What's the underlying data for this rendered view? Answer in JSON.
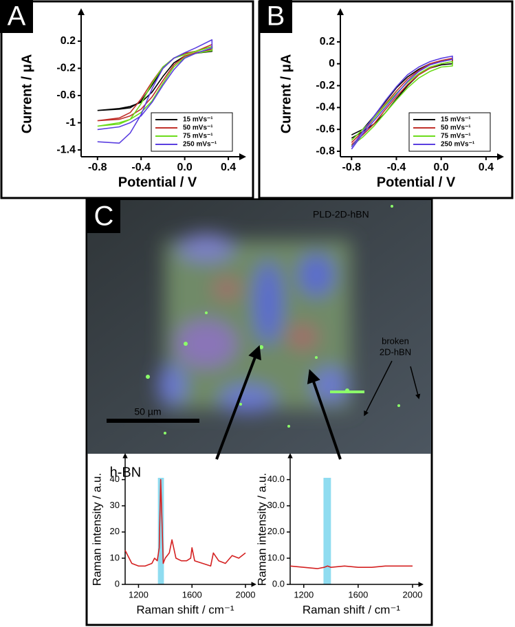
{
  "chart_data": [
    {
      "type": "line",
      "panel": "A",
      "xlabel": "Potential / V",
      "ylabel": "Current / μA",
      "xlim": [
        -0.95,
        0.45
      ],
      "ylim": [
        -1.5,
        0.35
      ],
      "xticks": [
        -0.8,
        -0.4,
        {
          "value": 0,
          "label": "0.0"
        },
        0.4
      ],
      "yticks": [
        0.2,
        -0.2,
        -0.6,
        -1,
        -1.4
      ],
      "legend": "lower right",
      "series": [
        {
          "name": "15 mVs⁻¹",
          "color": "#000000",
          "x": [
            -0.8,
            -0.6,
            -0.5,
            -0.4,
            -0.3,
            -0.2,
            -0.1,
            0,
            0.1,
            0.25,
            0.25,
            0.1,
            0,
            -0.1,
            -0.2,
            -0.3,
            -0.4,
            -0.5,
            -0.6,
            -0.8
          ],
          "values": [
            -0.82,
            -0.8,
            -0.78,
            -0.68,
            -0.45,
            -0.2,
            -0.05,
            0.02,
            0.05,
            0.12,
            0.05,
            0.02,
            -0.02,
            -0.12,
            -0.32,
            -0.55,
            -0.7,
            -0.76,
            -0.79,
            -0.82
          ]
        },
        {
          "name": "50 mVs⁻¹",
          "color": "#c0302a",
          "x": [
            -0.8,
            -0.6,
            -0.5,
            -0.4,
            -0.3,
            -0.2,
            -0.1,
            0,
            0.1,
            0.25,
            0.25,
            0.1,
            0,
            -0.1,
            -0.2,
            -0.3,
            -0.4,
            -0.5,
            -0.6,
            -0.8
          ],
          "values": [
            -0.97,
            -0.93,
            -0.85,
            -0.65,
            -0.4,
            -0.18,
            -0.05,
            0.02,
            0.05,
            0.15,
            0.08,
            0.03,
            -0.02,
            -0.15,
            -0.38,
            -0.62,
            -0.8,
            -0.9,
            -0.95,
            -0.97
          ]
        },
        {
          "name": "75 mVs⁻¹",
          "color": "#6cdc1a",
          "x": [
            -0.8,
            -0.6,
            -0.5,
            -0.4,
            -0.3,
            -0.2,
            -0.1,
            0,
            0.1,
            0.25,
            0.25,
            0.1,
            0,
            -0.1,
            -0.2,
            -0.3,
            -0.4,
            -0.5,
            -0.6,
            -0.8
          ],
          "values": [
            -1.05,
            -1.02,
            -0.95,
            -0.72,
            -0.42,
            -0.18,
            -0.05,
            0,
            0.05,
            0.12,
            0.06,
            0.02,
            -0.04,
            -0.18,
            -0.42,
            -0.68,
            -0.85,
            -0.95,
            -1,
            -1.05
          ]
        },
        {
          "name": "250 mVs⁻¹",
          "color": "#5a3ee0",
          "x": [
            -0.8,
            -0.6,
            -0.5,
            -0.4,
            -0.3,
            -0.2,
            -0.1,
            0,
            0.1,
            0.25,
            0.25,
            0.1,
            0,
            -0.1,
            -0.2,
            -0.3,
            -0.4,
            -0.5,
            -0.6,
            -0.8
          ],
          "values": [
            -1.28,
            -1.3,
            -1.15,
            -0.88,
            -0.5,
            -0.2,
            -0.05,
            0.03,
            0.1,
            0.22,
            0.1,
            0.02,
            -0.05,
            -0.22,
            -0.45,
            -0.7,
            -0.9,
            -1,
            -1.06,
            -1.1
          ]
        }
      ]
    },
    {
      "type": "line",
      "panel": "B",
      "xlabel": "Potential / V",
      "ylabel": "Current / μA",
      "xlim": [
        -0.9,
        0.45
      ],
      "ylim": [
        -0.85,
        0.3
      ],
      "xticks": [
        -0.8,
        -0.4,
        {
          "value": 0,
          "label": "0.0"
        },
        0.4
      ],
      "yticks": [
        0.2,
        0,
        -0.2,
        -0.4,
        -0.6,
        -0.8
      ],
      "legend": "lower right",
      "series": [
        {
          "name": "15 mVs⁻¹",
          "color": "#000000",
          "x": [
            -0.8,
            -0.7,
            -0.6,
            -0.5,
            -0.4,
            -0.3,
            -0.2,
            -0.1,
            0,
            0.1,
            0.1,
            0,
            -0.1,
            -0.2,
            -0.3,
            -0.4,
            -0.5,
            -0.6,
            -0.7,
            -0.8
          ],
          "values": [
            -0.65,
            -0.6,
            -0.48,
            -0.35,
            -0.22,
            -0.12,
            -0.05,
            0,
            0.02,
            0.04,
            0,
            -0.01,
            -0.04,
            -0.1,
            -0.2,
            -0.32,
            -0.45,
            -0.55,
            -0.62,
            -0.68
          ]
        },
        {
          "name": "50 mVs⁻¹",
          "color": "#c0302a",
          "x": [
            -0.8,
            -0.7,
            -0.6,
            -0.5,
            -0.4,
            -0.3,
            -0.2,
            -0.1,
            0,
            0.1,
            0.1,
            0,
            -0.1,
            -0.2,
            -0.3,
            -0.4,
            -0.5,
            -0.6,
            -0.7,
            -0.8
          ],
          "values": [
            -0.72,
            -0.62,
            -0.5,
            -0.37,
            -0.25,
            -0.14,
            -0.06,
            0,
            0.03,
            0.05,
            0.02,
            0,
            -0.04,
            -0.1,
            -0.19,
            -0.3,
            -0.42,
            -0.55,
            -0.65,
            -0.74
          ]
        },
        {
          "name": "75 mVs⁻¹",
          "color": "#6cdc1a",
          "x": [
            -0.8,
            -0.7,
            -0.6,
            -0.5,
            -0.4,
            -0.3,
            -0.2,
            -0.1,
            0,
            0.1,
            0.1,
            0,
            -0.1,
            -0.2,
            -0.3,
            -0.4,
            -0.5,
            -0.6,
            -0.7,
            -0.8
          ],
          "values": [
            -0.7,
            -0.6,
            -0.5,
            -0.38,
            -0.27,
            -0.17,
            -0.09,
            -0.03,
            0,
            0.02,
            -0.02,
            -0.03,
            -0.07,
            -0.13,
            -0.22,
            -0.33,
            -0.45,
            -0.57,
            -0.67,
            -0.75
          ]
        },
        {
          "name": "250 mVs⁻¹",
          "color": "#5a3ee0",
          "x": [
            -0.8,
            -0.7,
            -0.6,
            -0.5,
            -0.4,
            -0.3,
            -0.2,
            -0.1,
            0,
            0.1,
            0.1,
            0,
            -0.1,
            -0.2,
            -0.3,
            -0.4,
            -0.5,
            -0.6,
            -0.7,
            -0.8
          ],
          "values": [
            -0.76,
            -0.62,
            -0.48,
            -0.34,
            -0.21,
            -0.1,
            -0.03,
            0.02,
            0.05,
            0.07,
            0.04,
            0.02,
            -0.01,
            -0.07,
            -0.16,
            -0.28,
            -0.4,
            -0.52,
            -0.64,
            -0.78
          ]
        }
      ]
    },
    {
      "type": "line",
      "xlabel": "Raman shift / cm⁻¹",
      "ylabel": "Raman intensity / a.u.",
      "annotation": "h-BN",
      "xlim": [
        1100,
        2000
      ],
      "ylim": [
        0,
        42
      ],
      "xticks": [
        1200,
        1600,
        2000
      ],
      "yticks": [
        0,
        10,
        20,
        30,
        40
      ],
      "band": [
        1345,
        1390
      ],
      "series": [
        {
          "color": "#d42020",
          "x": [
            1100,
            1150,
            1200,
            1250,
            1300,
            1320,
            1340,
            1355,
            1366,
            1375,
            1385,
            1400,
            1430,
            1450,
            1480,
            1520,
            1560,
            1590,
            1600,
            1620,
            1680,
            1740,
            1760,
            1800,
            1850,
            1900,
            1950,
            2000
          ],
          "values": [
            13,
            8,
            7,
            7,
            8,
            10,
            9,
            14,
            40,
            25,
            8,
            10,
            12,
            17,
            10,
            9,
            9,
            10,
            14,
            9,
            8,
            7,
            12,
            9,
            8,
            11,
            10,
            12
          ]
        }
      ]
    },
    {
      "type": "line",
      "xlabel": "Raman shift / cm⁻¹",
      "ylabel": "Raman intensity / a.u.",
      "xlim": [
        1100,
        2000
      ],
      "ylim": [
        0,
        42
      ],
      "xticks": [
        1200,
        1600,
        2000
      ],
      "yticks": [
        {
          "value": 0,
          "label": "0.0"
        },
        {
          "value": 10,
          "label": "10.0"
        },
        {
          "value": 20,
          "label": "20.0"
        },
        {
          "value": 30,
          "label": "30.0"
        },
        {
          "value": 40,
          "label": "40.0"
        }
      ],
      "band": [
        1345,
        1400
      ],
      "series": [
        {
          "color": "#d42020",
          "x": [
            1100,
            1200,
            1300,
            1350,
            1375,
            1400,
            1500,
            1600,
            1700,
            1800,
            1900,
            2000
          ],
          "values": [
            7,
            6.5,
            6,
            6.5,
            7,
            6.5,
            7,
            6.5,
            6.5,
            7,
            7,
            7
          ]
        }
      ]
    }
  ],
  "image": {
    "panel": "C",
    "sample_label": "PLD-2D-hBN",
    "broken_label_1": "broken",
    "broken_label_2": "2D-hBN",
    "scale_bar": "50 µm"
  }
}
